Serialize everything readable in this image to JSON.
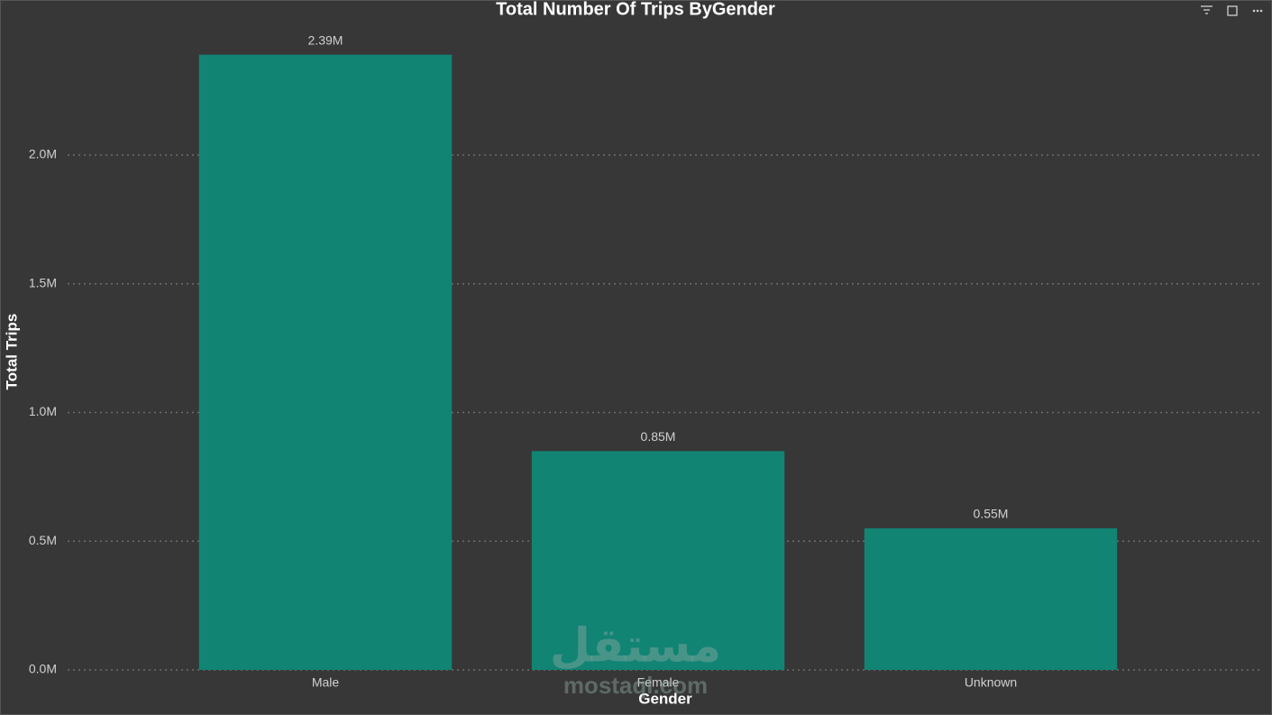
{
  "chart_data": {
    "type": "bar",
    "title": "Total Number Of Trips ByGender",
    "x_label": "Gender",
    "y_label": "Total Trips",
    "categories": [
      "Male",
      "Female",
      "Unknown"
    ],
    "values": [
      2390000,
      850000,
      550000
    ],
    "value_labels": [
      "2.39M",
      "0.85M",
      "0.55M"
    ],
    "color": "#118474",
    "ylim": [
      0,
      2500000
    ],
    "yticks": [
      {
        "value": 0,
        "label": "0.0M"
      },
      {
        "value": 500000,
        "label": "0.5M"
      },
      {
        "value": 1000000,
        "label": "1.0M"
      },
      {
        "value": 1500000,
        "label": "1.5M"
      },
      {
        "value": 2000000,
        "label": "2.0M"
      }
    ],
    "grid": true
  },
  "watermark": {
    "arabic": "مستقل",
    "latin": "mostaql.com"
  }
}
